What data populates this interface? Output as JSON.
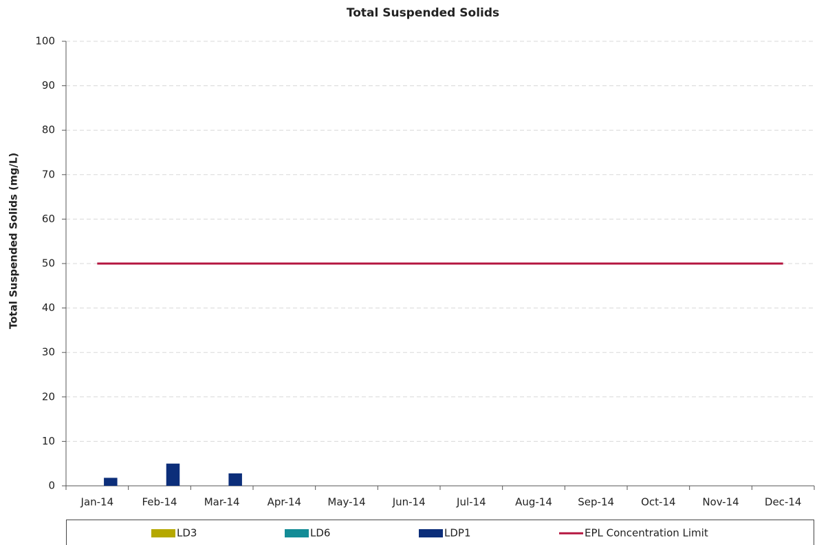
{
  "chart_data": {
    "type": "bar",
    "title": "Total Suspended Solids",
    "y_label": "Total Suspended Solids (mg/L)",
    "categories": [
      "Jan-14",
      "Feb-14",
      "Mar-14",
      "Apr-14",
      "May-14",
      "Jun-14",
      "Jul-14",
      "Aug-14",
      "Sep-14",
      "Oct-14",
      "Nov-14",
      "Dec-14"
    ],
    "series": [
      {
        "name": "LD3",
        "color": "#b5a800",
        "type": "bar",
        "values": [
          null,
          null,
          null,
          null,
          null,
          null,
          null,
          null,
          null,
          null,
          null,
          null
        ]
      },
      {
        "name": "LD6",
        "color": "#138c96",
        "type": "bar",
        "values": [
          null,
          null,
          null,
          null,
          null,
          null,
          null,
          null,
          null,
          null,
          null,
          null
        ]
      },
      {
        "name": "LDP1",
        "color": "#0c2e7a",
        "type": "bar",
        "values": [
          1.8,
          5,
          2.8,
          null,
          null,
          null,
          null,
          null,
          null,
          null,
          null,
          null
        ]
      },
      {
        "name": "EPL Concentration Limit",
        "color": "#b5153f",
        "type": "line",
        "values": [
          50,
          50,
          50,
          50,
          50,
          50,
          50,
          50,
          50,
          50,
          50,
          50
        ]
      }
    ],
    "ylim": [
      0,
      100
    ],
    "yticks": [
      0,
      10,
      20,
      30,
      40,
      50,
      60,
      70,
      80,
      90,
      100
    ],
    "grid": true,
    "legend": "bottom"
  }
}
